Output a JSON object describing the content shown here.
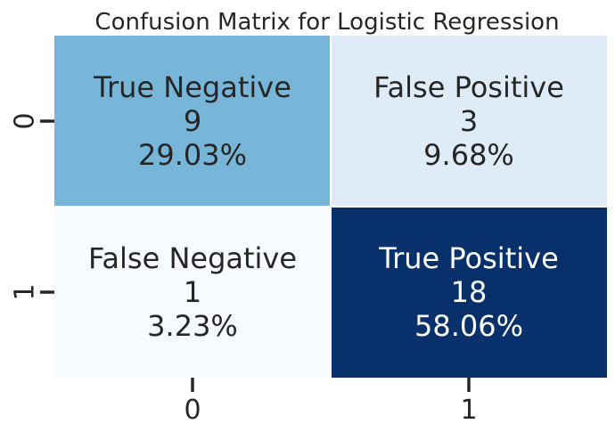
{
  "chart_data": {
    "type": "heatmap",
    "title": "Confusion Matrix for Logistic Regression",
    "xlabel": "",
    "ylabel": "",
    "x_categories": [
      "0",
      "1"
    ],
    "y_categories": [
      "0",
      "1"
    ],
    "values": [
      [
        9,
        3
      ],
      [
        1,
        18
      ]
    ],
    "cell_names": [
      [
        "True Negative",
        "False Positive"
      ],
      [
        "False Negative",
        "True Positive"
      ]
    ],
    "percentages": [
      [
        "29.03%",
        "9.68%"
      ],
      [
        "3.23%",
        "58.06%"
      ]
    ],
    "value_range": [
      1,
      18
    ],
    "colormap": "Blues",
    "grid": false,
    "colorbar": false,
    "colors": {
      "low": "#f7fbff",
      "mid_low": "#deebf7",
      "mid": "#6baed6",
      "high": "#08306b",
      "dark_text": "#262626",
      "light_text": "#ffffff",
      "separator": "#ffffff"
    }
  }
}
